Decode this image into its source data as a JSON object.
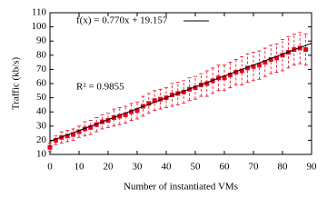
{
  "chart_data": {
    "type": "scatter",
    "x_label": "Number of instantiated VMs",
    "y_label": "Traffic (kb/s)",
    "x": [
      0,
      2,
      4,
      6,
      8,
      10,
      12,
      14,
      16,
      18,
      20,
      22,
      24,
      26,
      28,
      30,
      32,
      34,
      36,
      38,
      40,
      42,
      44,
      46,
      48,
      50,
      52,
      54,
      56,
      58,
      60,
      62,
      64,
      66,
      68,
      70,
      72,
      74,
      76,
      78,
      80,
      82,
      84,
      86,
      88
    ],
    "series": [
      {
        "color": "#e8001c",
        "values": [
          15,
          20,
          22,
          23,
          24,
          26,
          28,
          29,
          31,
          33,
          34,
          36,
          37,
          38,
          40,
          41,
          44,
          46,
          48,
          49,
          50,
          52,
          53,
          54,
          56,
          57,
          59,
          60,
          62,
          64,
          64,
          66,
          68,
          69,
          71,
          72,
          73,
          75,
          77,
          78,
          80,
          82,
          84,
          85,
          84
        ],
        "errors": [
          3,
          3,
          4,
          4,
          4,
          4,
          5,
          5,
          5,
          5,
          5,
          6,
          6,
          6,
          6,
          6,
          7,
          7,
          7,
          7,
          7,
          8,
          8,
          8,
          8,
          8,
          8,
          9,
          9,
          9,
          9,
          9,
          9,
          10,
          10,
          10,
          10,
          10,
          10,
          10,
          11,
          11,
          11,
          11,
          11
        ]
      }
    ],
    "fit": {
      "label": "f(x) = 0.770x + 19.157",
      "slope": 0.77,
      "intercept": 19.157,
      "color": "#000000"
    },
    "r2_label": "R² = 0.9855",
    "xlim": [
      0,
      90
    ],
    "ylim": [
      10,
      110
    ],
    "xticks": [
      0,
      10,
      20,
      30,
      40,
      50,
      60,
      70,
      80,
      90
    ],
    "yticks": [
      10,
      20,
      30,
      40,
      50,
      60,
      70,
      80,
      90,
      100,
      110
    ]
  }
}
